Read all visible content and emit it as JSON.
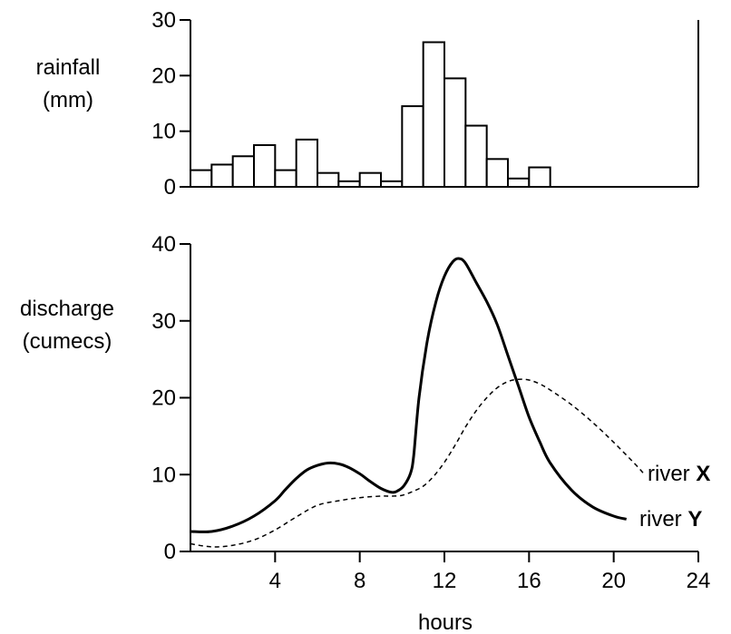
{
  "chart_data": [
    {
      "type": "bar",
      "ylabel": [
        "rainfall",
        "(mm)"
      ],
      "ylim": [
        0,
        30
      ],
      "yticks": [
        "0",
        "10",
        "20",
        "30"
      ],
      "xlim": [
        0,
        24
      ],
      "bin_width_hours": 1,
      "x_start": [
        0,
        1,
        2,
        3,
        4,
        5,
        6,
        7,
        8,
        9,
        10,
        11,
        12,
        13,
        14,
        15,
        16
      ],
      "values": [
        3,
        4,
        5.5,
        7.5,
        3,
        8.5,
        2.5,
        1,
        2.5,
        1,
        14.5,
        26,
        19.5,
        11,
        5,
        1.5,
        3.5
      ],
      "grid": false
    },
    {
      "type": "line",
      "xlabel": "hours",
      "ylabel": [
        "discharge",
        "(cumecs)"
      ],
      "xlim": [
        0,
        24
      ],
      "ylim": [
        0,
        40
      ],
      "xticks": [
        "4",
        "8",
        "12",
        "16",
        "20",
        "24"
      ],
      "yticks": [
        "0",
        "10",
        "20",
        "30",
        "40"
      ],
      "grid": false,
      "series": [
        {
          "name": "river X",
          "label_prefix": "river ",
          "label_suffix": "X",
          "style": "dashed",
          "x": [
            0,
            1,
            2,
            3,
            4,
            5,
            6,
            7,
            8,
            9,
            9.5,
            10,
            10.5,
            11,
            11.5,
            12,
            12.5,
            13,
            13.5,
            14,
            14.5,
            15,
            15.5,
            16,
            16.5,
            17,
            18,
            19,
            20,
            21,
            21.4
          ],
          "y": [
            1,
            0.6,
            0.8,
            1.5,
            2.8,
            4.5,
            6,
            6.6,
            7,
            7.2,
            7.2,
            7.3,
            7.8,
            8.5,
            9.8,
            11.6,
            13.8,
            16.2,
            18.3,
            20,
            21.3,
            22.1,
            22.4,
            22.3,
            21.8,
            21,
            19.1,
            16.8,
            14.2,
            11.4,
            10.2
          ]
        },
        {
          "name": "river Y",
          "label_prefix": "river ",
          "label_suffix": "Y",
          "style": "solid",
          "x": [
            0,
            1,
            2,
            3,
            4,
            4.5,
            5,
            5.5,
            6,
            6.5,
            7,
            7.5,
            8,
            8.5,
            9,
            9.5,
            9.8,
            10.1,
            10.4,
            10.55,
            10.8,
            11.2,
            11.6,
            12,
            12.4,
            12.7,
            13,
            13.5,
            14,
            14.5,
            15,
            15.5,
            16,
            16.5,
            17,
            18,
            19,
            20,
            20.6
          ],
          "y": [
            2.6,
            2.6,
            3.3,
            4.6,
            6.6,
            8.1,
            9.5,
            10.6,
            11.2,
            11.5,
            11.4,
            10.9,
            10.1,
            9.1,
            8.2,
            7.7,
            7.9,
            8.6,
            10.2,
            12.5,
            20,
            27.5,
            32.5,
            35.8,
            37.7,
            38.1,
            37.5,
            35,
            32.5,
            29.5,
            25.5,
            21.5,
            17.5,
            14.3,
            11.5,
            8,
            5.8,
            4.6,
            4.2
          ]
        }
      ]
    }
  ]
}
